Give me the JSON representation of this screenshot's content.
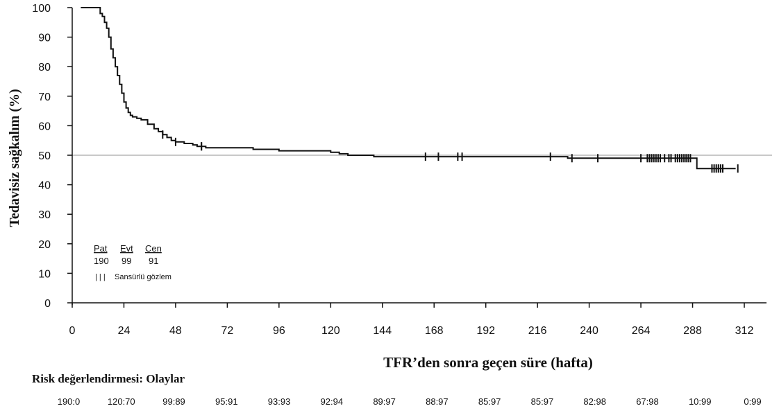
{
  "chart_data": {
    "type": "line",
    "xlabel": "TFR’den sonra geçen süre (hafta)",
    "ylabel": "Tedavisiz sağkalım (%)",
    "xlim": [
      0,
      312
    ],
    "ylim": [
      0,
      100
    ],
    "x_ticks": [
      "0",
      "24",
      "48",
      "72",
      "96",
      "120",
      "144",
      "168",
      "192",
      "216",
      "240",
      "264",
      "288",
      "312"
    ],
    "y_ticks": [
      "0",
      "10",
      "20",
      "30",
      "40",
      "50",
      "60",
      "70",
      "80",
      "90",
      "100"
    ],
    "reference_line_y": 50,
    "series": [
      {
        "x": [
          4,
          12,
          13,
          14,
          15,
          16,
          17,
          18,
          19,
          20,
          21,
          22,
          23,
          24,
          25,
          26,
          27,
          28,
          30,
          32,
          35,
          38,
          40,
          42,
          44,
          46,
          48,
          52,
          56,
          58,
          60,
          62,
          64,
          66,
          68,
          70,
          72,
          76,
          80,
          84,
          88,
          92,
          96,
          100,
          104,
          108,
          112,
          116,
          120,
          124,
          128,
          132,
          136,
          140,
          144,
          160,
          200,
          230,
          240,
          270,
          285,
          290,
          303,
          308
        ],
        "y": [
          100,
          100,
          98,
          97,
          95,
          93,
          90,
          86,
          83,
          80,
          77,
          74,
          71,
          68,
          66,
          64.5,
          63.5,
          63,
          62.5,
          62,
          60.5,
          59,
          58,
          57,
          56,
          55,
          54.5,
          54,
          53.5,
          53,
          53,
          52.5,
          52.5,
          52.5,
          52.5,
          52.5,
          52.5,
          52.5,
          52.5,
          52,
          52,
          52,
          51.5,
          51.5,
          51.5,
          51.5,
          51.5,
          51.5,
          51,
          50.5,
          50,
          50,
          50,
          49.5,
          49.5,
          49.5,
          49.5,
          49,
          49,
          49,
          49,
          45.5,
          45.5,
          45.5
        ]
      }
    ],
    "censored_x": [
      42,
      48,
      60,
      60,
      164,
      170,
      179,
      181,
      222,
      232,
      244,
      264,
      267,
      268,
      269,
      270,
      271,
      272,
      273,
      275,
      277,
      278,
      280,
      281,
      282,
      283,
      284,
      285,
      286,
      287,
      297,
      298,
      299,
      300,
      301,
      302,
      309
    ]
  },
  "legend": {
    "headers": [
      "Pat",
      "Evt",
      "Cen"
    ],
    "values": [
      "190",
      "99",
      "91"
    ],
    "censored_symbol": "| | |",
    "censored_label": "Sansürlü gözlem"
  },
  "risk": {
    "title": "Risk değerlendirmesi: Olaylar",
    "values": [
      "190:0",
      "120:70",
      "99:89",
      "95:91",
      "93:93",
      "92:94",
      "89:97",
      "88:97",
      "85:97",
      "85:97",
      "82:98",
      "67:98",
      "10:99",
      "0:99"
    ]
  }
}
